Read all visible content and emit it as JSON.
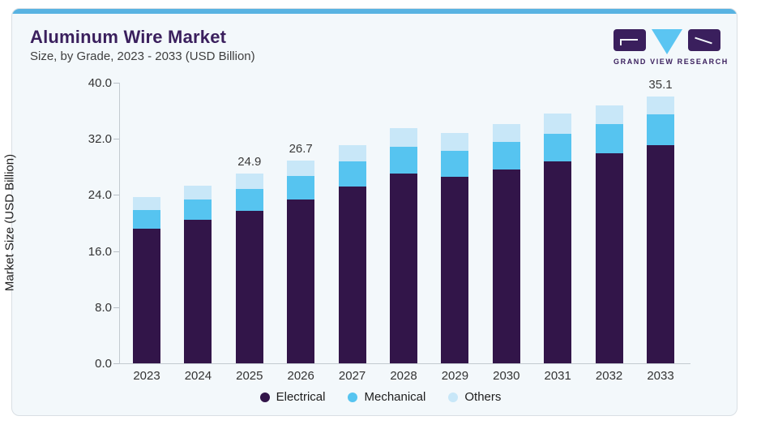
{
  "card": {
    "title": "Aluminum Wire Market",
    "subtitle": "Size, by Grade, 2023 - 2033 (USD Billion)",
    "brand_name": "GRAND VIEW RESEARCH"
  },
  "colors": {
    "accent_strip": "#58b3e2",
    "title_purple": "#3a1f5d",
    "card_background": "#f3f8fb",
    "axis_gray": "#b9c0c7",
    "electrical": "#321549",
    "mechanical": "#56c4f0",
    "others": "#c8e7f8"
  },
  "chart_data": {
    "type": "bar",
    "stacked": true,
    "title": "Aluminum Wire Market",
    "subtitle": "Size, by Grade, 2023 - 2033 (USD Billion)",
    "categories": [
      "2023",
      "2024",
      "2025",
      "2026",
      "2027",
      "2028",
      "2029",
      "2030",
      "2031",
      "2032",
      "2033"
    ],
    "series": [
      {
        "name": "Electrical",
        "color": "#321549",
        "values": [
          17.7,
          18.9,
          20.0,
          21.5,
          23.2,
          24.9,
          24.5,
          25.5,
          26.5,
          27.6,
          28.7
        ]
      },
      {
        "name": "Mechanical",
        "color": "#56c4f0",
        "values": [
          2.5,
          2.6,
          2.9,
          3.1,
          3.3,
          3.6,
          3.4,
          3.6,
          3.7,
          3.9,
          4.0
        ]
      },
      {
        "name": "Others",
        "color": "#c8e7f8",
        "values": [
          1.7,
          1.9,
          2.0,
          2.1,
          2.2,
          2.4,
          2.4,
          2.4,
          2.6,
          2.4,
          2.4
        ]
      }
    ],
    "totals": [
      21.9,
      23.4,
      24.9,
      26.7,
      28.7,
      30.9,
      30.3,
      31.5,
      32.8,
      33.9,
      35.1
    ],
    "bar_value_labels": {
      "2025": "24.9",
      "2026": "26.7",
      "2033": "35.1"
    },
    "ylabel": "Market Size (USD Billion)",
    "ytick_labels": [
      "0.0",
      "8.0",
      "16.0",
      "24.0",
      "32.0",
      "40.0"
    ],
    "ylim": [
      0,
      40
    ],
    "grid": false,
    "legend_position": "bottom",
    "legend": [
      "Electrical",
      "Mechanical",
      "Others"
    ]
  }
}
